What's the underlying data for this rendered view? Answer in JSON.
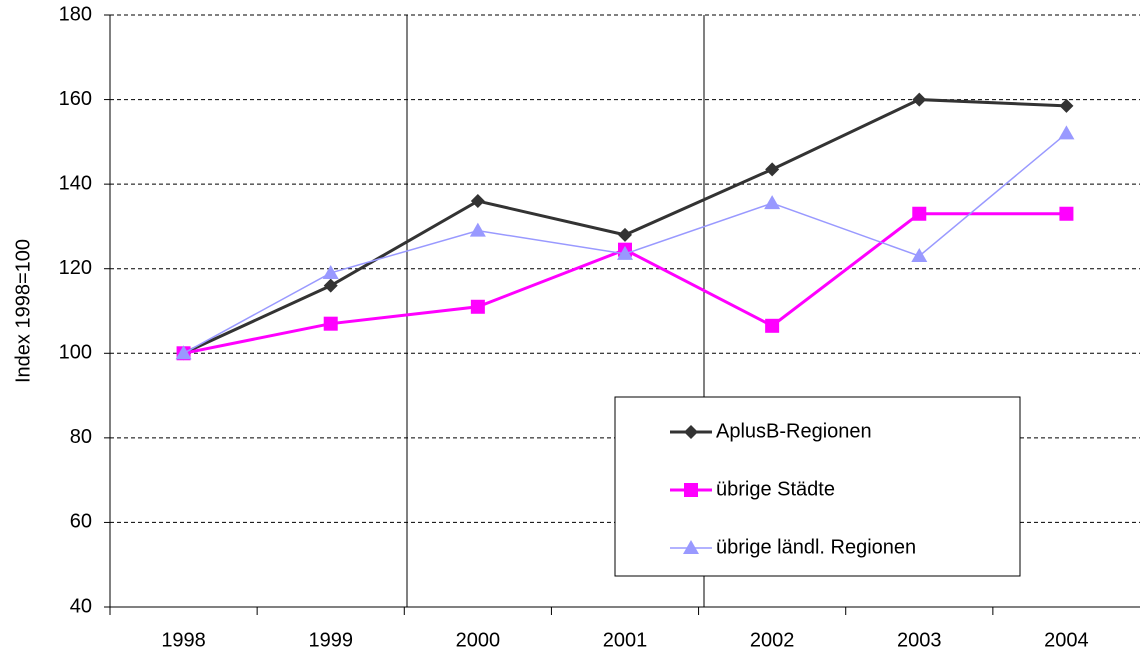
{
  "chart_data": {
    "type": "line",
    "y_label": "Index 1998=100",
    "categories": [
      "1998",
      "1999",
      "2000",
      "2001",
      "2002",
      "2003",
      "2004"
    ],
    "series": [
      {
        "name": "AplusB-Regionen",
        "color": "#333333",
        "marker": "diamond",
        "values": [
          100,
          116,
          136,
          128,
          143.5,
          160,
          158.5
        ]
      },
      {
        "name": "übrige Städte",
        "color": "#ff00ff",
        "marker": "square",
        "values": [
          100,
          107,
          111,
          124.5,
          106.5,
          133,
          133
        ]
      },
      {
        "name": "übrige ländl. Regionen",
        "color": "#9999ff",
        "marker": "triangle",
        "values": [
          100,
          119,
          129,
          123.5,
          135.5,
          123,
          152
        ]
      }
    ],
    "ylim": [
      40,
      180
    ],
    "yticks": [
      40,
      60,
      80,
      100,
      120,
      140,
      160,
      180
    ],
    "grid": true
  }
}
